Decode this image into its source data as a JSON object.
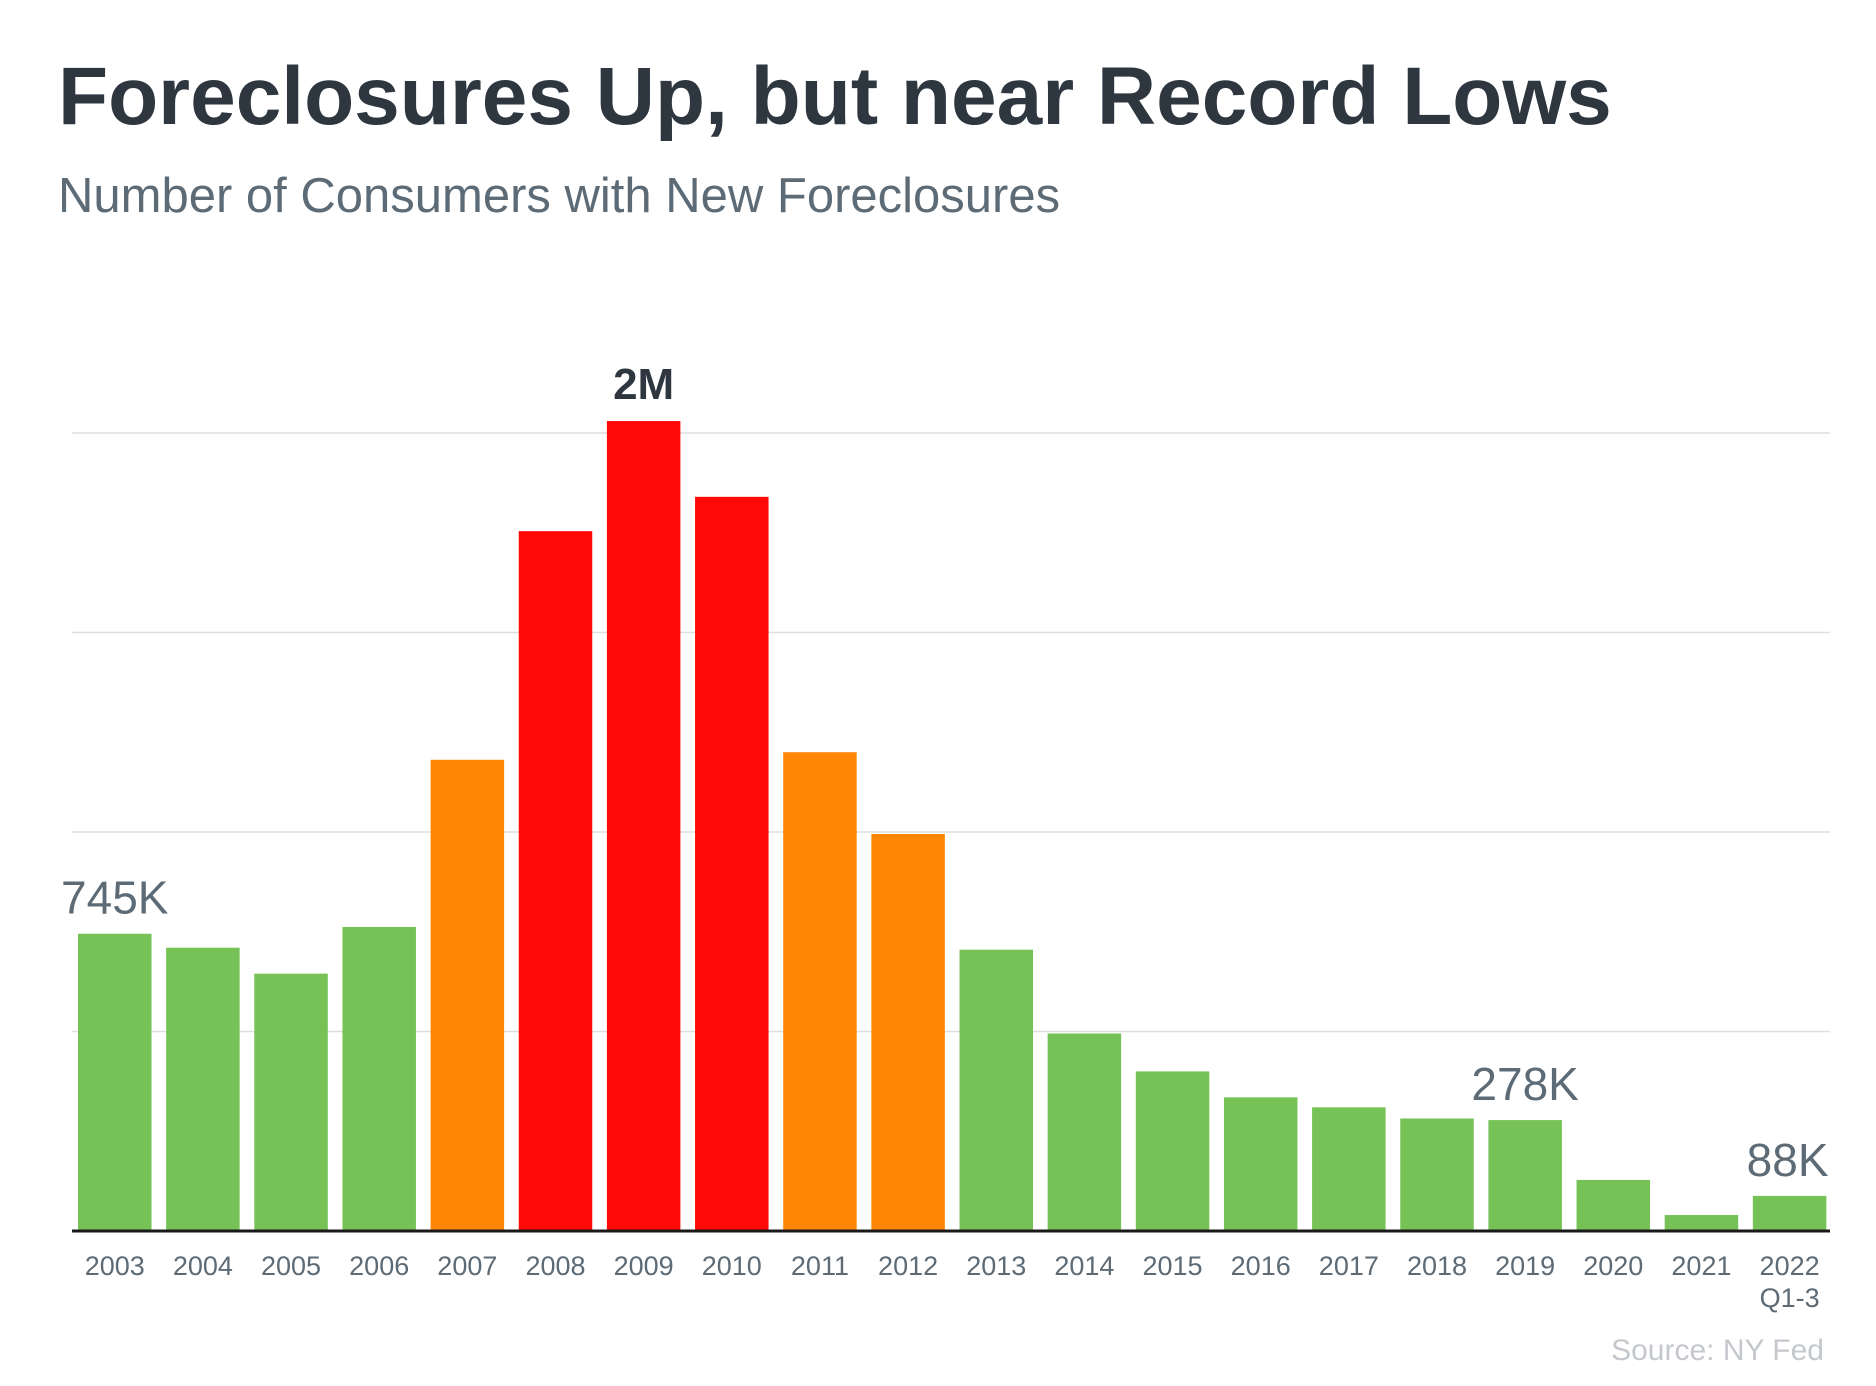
{
  "title": "Foreclosures Up, but near Record Lows",
  "subtitle": "Number of Consumers with New Foreclosures",
  "source": "Source: NY Fed",
  "colors": {
    "green": "#76c257",
    "orange": "#ff8705",
    "red": "#ff0808",
    "grid": "#dedede",
    "axis": "#1a1a1a",
    "tick_label": "#5d6b76",
    "annotation": "#5d6b76",
    "annotation_peak": "#2e3640"
  },
  "chart_data": {
    "type": "bar",
    "categories": [
      "2003",
      "2004",
      "2005",
      "2006",
      "2007",
      "2008",
      "2009",
      "2010",
      "2011",
      "2012",
      "2013",
      "2014",
      "2015",
      "2016",
      "2017",
      "2018",
      "2019",
      "2020",
      "2021",
      "2022\nQ1-3"
    ],
    "values": [
      745000,
      710000,
      645000,
      762000,
      1181000,
      1754000,
      2030000,
      1840000,
      1200000,
      995000,
      705000,
      495000,
      400000,
      335000,
      310000,
      282000,
      278000,
      128000,
      40000,
      88000
    ],
    "bar_colors": [
      "green",
      "green",
      "green",
      "green",
      "orange",
      "red",
      "red",
      "red",
      "orange",
      "orange",
      "green",
      "green",
      "green",
      "green",
      "green",
      "green",
      "green",
      "green",
      "green",
      "green"
    ],
    "ylim": [
      0,
      2000000
    ],
    "yticks": [
      0,
      500000,
      1000000,
      1500000,
      2000000
    ],
    "grid": true,
    "y_axis_labels_shown": false,
    "xlabel": "",
    "ylabel": "",
    "annotations": [
      {
        "category": "2003",
        "text": "745K",
        "style": "normal"
      },
      {
        "category": "2009",
        "text": "2M",
        "style": "bold"
      },
      {
        "category": "2019",
        "text": "278K",
        "style": "normal"
      },
      {
        "category": "2022\nQ1-3",
        "text": "88K",
        "style": "normal"
      }
    ]
  }
}
